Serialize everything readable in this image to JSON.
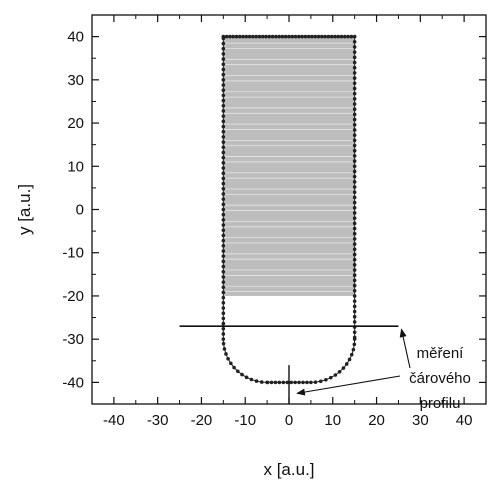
{
  "chart_data": {
    "type": "diagram",
    "xlabel": "x [a.u.]",
    "ylabel": "y [a.u.]",
    "xlim": [
      -45,
      45
    ],
    "ylim": [
      -45,
      45
    ],
    "xticks": [
      -40,
      -30,
      -20,
      -10,
      0,
      10,
      20,
      30,
      40
    ],
    "yticks": [
      40,
      30,
      20,
      10,
      0,
      -10,
      -20,
      -30,
      -40
    ],
    "shape": {
      "x_left": -15,
      "x_right": 15,
      "y_top": 40,
      "y_fill_bottom": -20,
      "y_bottom": -40,
      "corner_radius": 10,
      "fill_color": "#bdbdbd",
      "stripe_color": "#e6e6e6",
      "outline_color": "#222222"
    },
    "horizontal_line": {
      "y": -27,
      "x_from": -25,
      "x_to": 25
    },
    "vertical_line": {
      "x": 0,
      "y_from": -45,
      "y_to": -36
    },
    "annotation": {
      "lines": [
        "měření",
        "čárového",
        "profilu"
      ],
      "position": "bottom-right",
      "arrow_targets": [
        [
          25,
          -27
        ],
        [
          0,
          -43
        ]
      ]
    }
  }
}
